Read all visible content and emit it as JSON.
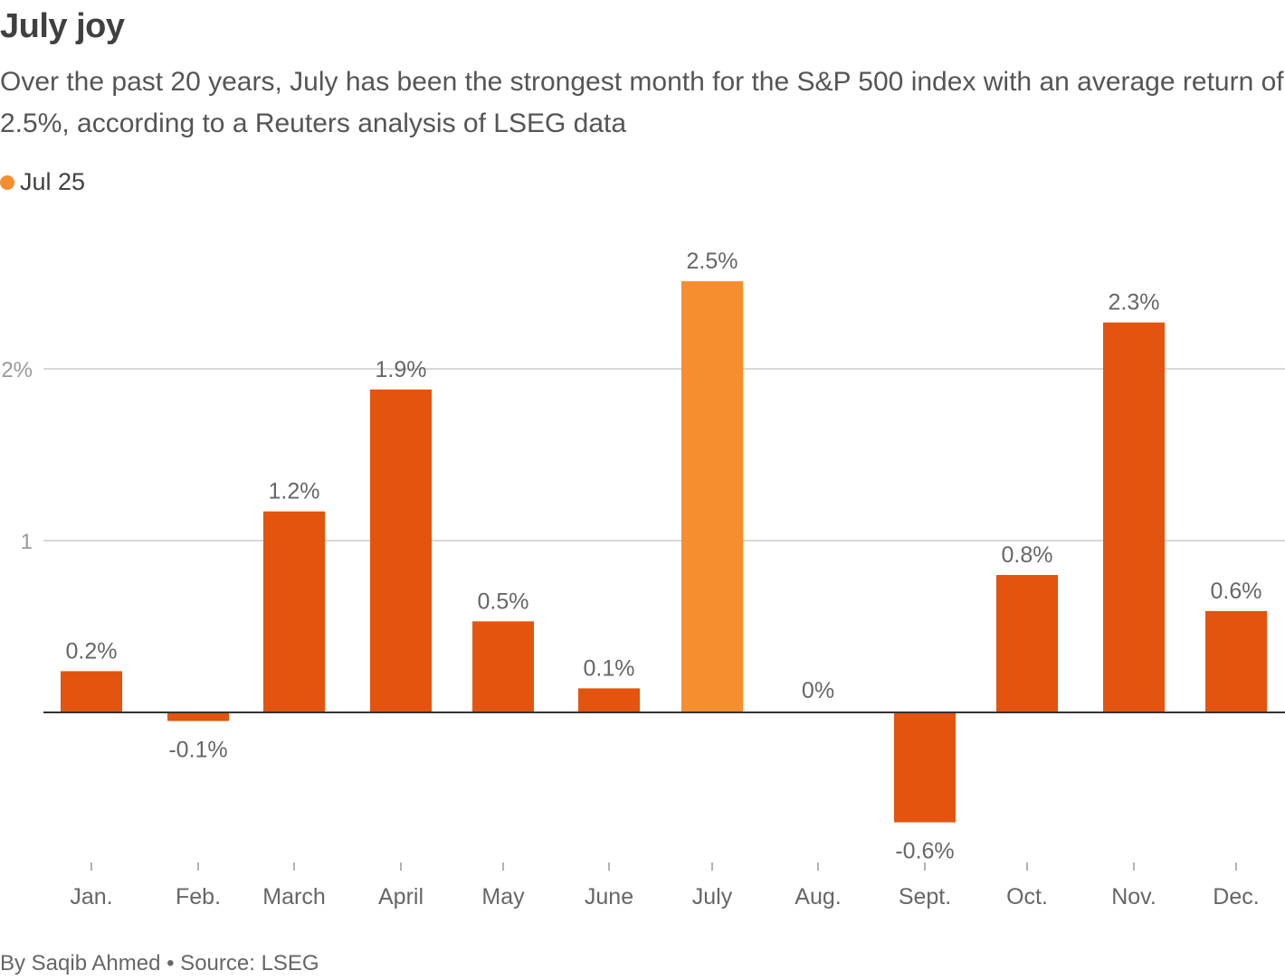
{
  "header": {
    "title": "July joy",
    "subtitle": "Over the past 20 years, July has been the strongest month for the S&P 500 index with an average return of 2.5%, according to a Reuters analysis of LSEG data"
  },
  "legend": {
    "label": "Jul 25",
    "color": "#f68d2e"
  },
  "footer": {
    "source": "By Saqib Ahmed • Source: LSEG"
  },
  "colors": {
    "bar": "#e3540f",
    "highlight": "#f68d2e",
    "grid": "#cccccc",
    "zero_line": "#333333",
    "label": "#666666",
    "tick_label": "#999999"
  },
  "chart_data": {
    "type": "bar",
    "title": "July joy",
    "xlabel": "",
    "ylabel": "",
    "categories": [
      "Jan.",
      "Feb.",
      "March",
      "April",
      "May",
      "June",
      "July",
      "Aug.",
      "Sept.",
      "Oct.",
      "Nov.",
      "Dec."
    ],
    "values": [
      0.24,
      -0.05,
      1.17,
      1.88,
      0.53,
      0.14,
      2.51,
      0.0,
      -0.64,
      0.8,
      2.27,
      0.59
    ],
    "value_labels": [
      "0.2%",
      "-0.1%",
      "1.2%",
      "1.9%",
      "0.5%",
      "0.1%",
      "2.5%",
      "0%",
      "-0.6%",
      "0.8%",
      "2.3%",
      "0.6%"
    ],
    "highlight": "July",
    "y_ticks": [
      {
        "value": 2,
        "label": "2%"
      },
      {
        "value": 1,
        "label": "1"
      }
    ],
    "ylim": [
      -0.9,
      2.6
    ],
    "grid": true
  }
}
